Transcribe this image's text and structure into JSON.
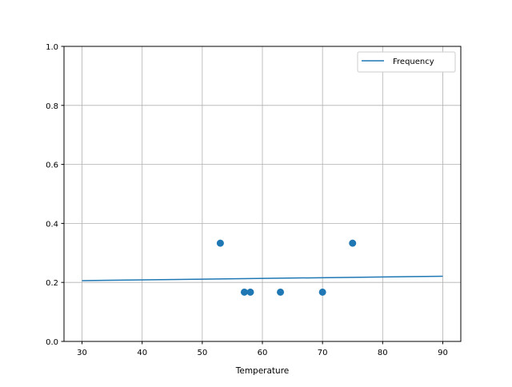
{
  "chart_data": {
    "type": "line+scatter",
    "title": "",
    "xlabel": "Temperature",
    "ylabel": "",
    "xlim": [
      27,
      93
    ],
    "ylim": [
      0,
      1.0
    ],
    "xticks": [
      30,
      40,
      50,
      60,
      70,
      80,
      90
    ],
    "yticks": [
      0.0,
      0.2,
      0.4,
      0.6,
      0.8,
      1.0
    ],
    "ytick_labels": [
      "0.0",
      "0.2",
      "0.4",
      "0.6",
      "0.8",
      "1.0"
    ],
    "grid": true,
    "legend_position": "top-right",
    "color": "#1f77b4",
    "line": {
      "name": "Frequency",
      "x": [
        30,
        90
      ],
      "y": [
        0.206,
        0.221
      ]
    },
    "scatter": {
      "x": [
        53,
        57,
        58,
        63,
        70,
        75
      ],
      "y": [
        0.333,
        0.167,
        0.167,
        0.167,
        0.167,
        0.333
      ]
    }
  }
}
